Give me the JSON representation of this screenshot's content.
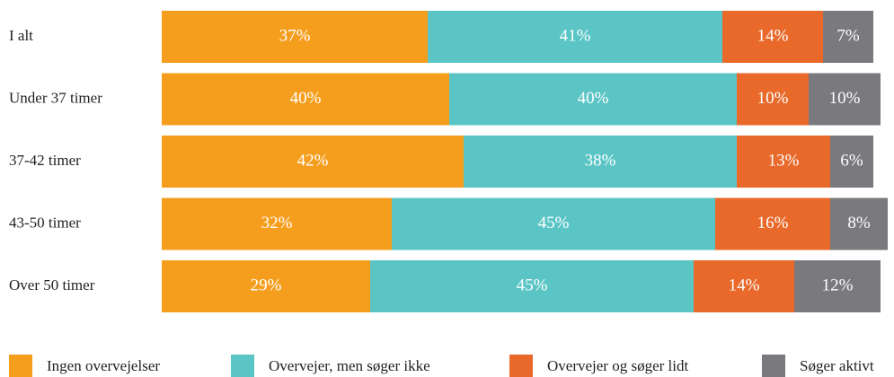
{
  "chart_data": {
    "type": "stacked_bar_horizontal",
    "categories": [
      "I alt",
      "Under 37 timer",
      "37-42 timer",
      "43-50 timer",
      "Over 50 timer"
    ],
    "series": [
      {
        "name": "Ingen overvejelser",
        "color": "#f59e1e",
        "values": [
          37,
          40,
          42,
          32,
          29
        ],
        "value_labels": [
          "37%",
          "40%",
          "42%",
          "32%",
          "29%"
        ]
      },
      {
        "name": "Overvejer, men søger ikke",
        "color": "#5bc5c5",
        "values": [
          41,
          40,
          38,
          45,
          45
        ],
        "value_labels": [
          "41%",
          "40%",
          "38%",
          "45%",
          "45%"
        ]
      },
      {
        "name": "Overvejer og søger lidt",
        "color": "#e8692a",
        "values": [
          14,
          10,
          13,
          16,
          14
        ],
        "value_labels": [
          "14%",
          "10%",
          "13%",
          "16%",
          "14%"
        ]
      },
      {
        "name": "Søger aktivt",
        "color": "#7a7a7e",
        "values": [
          7,
          10,
          6,
          8,
          12
        ],
        "value_labels": [
          "7%",
          "10%",
          "6%",
          "8%",
          "12%"
        ]
      }
    ],
    "xlim": [
      0,
      100
    ],
    "legend": "bottom"
  }
}
